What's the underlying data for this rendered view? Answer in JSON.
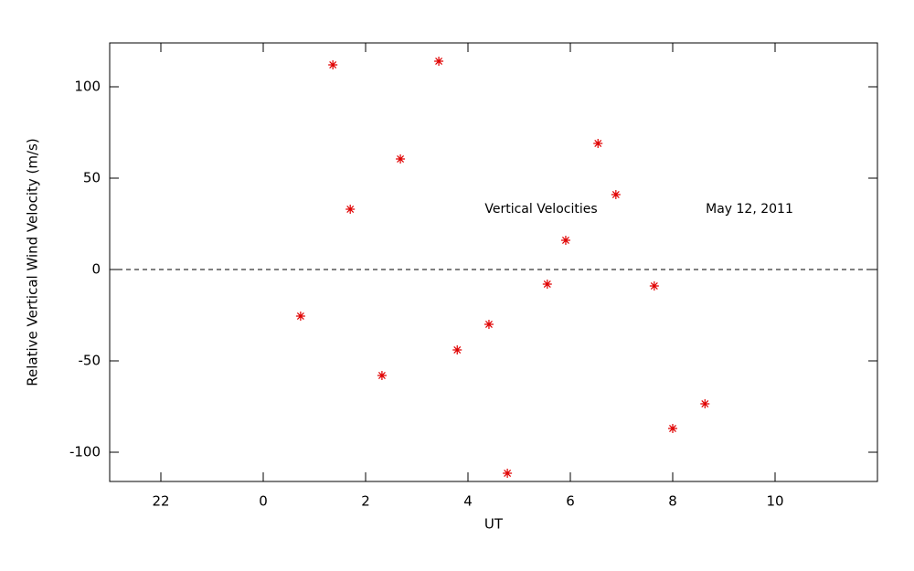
{
  "chart_data": {
    "type": "scatter",
    "x_label": "UT",
    "y_label": "Relative Vertical Wind Velocity (m/s)",
    "annotations": [
      "Vertical Velocities",
      "May 12, 2011"
    ],
    "xlim": [
      -3,
      12
    ],
    "ylim": [
      -116,
      124
    ],
    "xticks": [
      {
        "value": -2,
        "label": "22"
      },
      0,
      2,
      4,
      6,
      8,
      10
    ],
    "yticks": [
      -100,
      -50,
      0,
      50,
      100
    ],
    "zero_line": true,
    "marker": "asterisk",
    "series": [
      {
        "color": "#e00000",
        "x": [
          0.73,
          1.36,
          1.7,
          2.32,
          2.68,
          3.43,
          3.79,
          4.41,
          4.77,
          5.55,
          5.91,
          6.54,
          6.89,
          7.64,
          8.0,
          8.63
        ],
        "values": [
          -25.5,
          112,
          33,
          -58,
          60.5,
          114,
          -44,
          -30,
          -111.5,
          -8,
          16,
          69,
          41,
          -9,
          -87,
          -73.5
        ]
      }
    ]
  }
}
